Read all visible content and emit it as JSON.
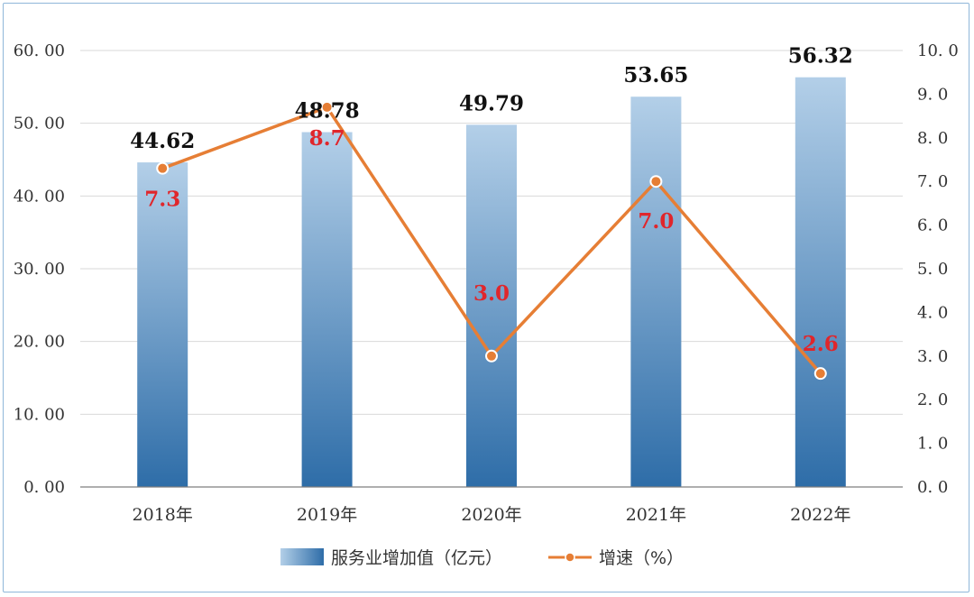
{
  "chart_data": {
    "type": "bar",
    "categories": [
      "2018年",
      "2019年",
      "2020年",
      "2021年",
      "2022年"
    ],
    "series": [
      {
        "name": "服务业增加值（亿元）",
        "type": "bar",
        "axis": "left",
        "values": [
          44.62,
          48.78,
          49.79,
          53.65,
          56.32
        ],
        "labels": [
          "44.62",
          "48.78",
          "49.79",
          "53.65",
          "56.32"
        ]
      },
      {
        "name": "增速（%）",
        "type": "line",
        "axis": "right",
        "values": [
          7.3,
          8.7,
          3.0,
          7.0,
          2.6
        ],
        "labels": [
          "7.3",
          "8.7",
          "3.0",
          "7.0",
          "2.6"
        ]
      }
    ],
    "y_left": {
      "ylim": [
        0,
        60
      ],
      "ticks": [
        0,
        10,
        20,
        30,
        40,
        50,
        60
      ],
      "tick_labels": [
        "0. 00",
        "10. 00",
        "20. 00",
        "30. 00",
        "40. 00",
        "50. 00",
        "60. 00"
      ]
    },
    "y_right": {
      "ylim": [
        0,
        10
      ],
      "ticks": [
        0,
        1,
        2,
        3,
        4,
        5,
        6,
        7,
        8,
        9,
        10
      ],
      "tick_labels": [
        "0. 0",
        "1. 0",
        "2. 0",
        "3. 0",
        "4. 0",
        "5. 0",
        "6. 0",
        "7. 0",
        "8. 0",
        "9. 0",
        "10. 0"
      ]
    },
    "grid": true,
    "legend_position": "bottom",
    "colors": {
      "bar_top": "#b3cfe8",
      "bar_bottom": "#2e6da8",
      "line": "#e67e35",
      "marker_stroke": "#ffffff",
      "rate_label": "#e0262b",
      "grid": "#d9d9d9",
      "axis": "#7f7f7f"
    }
  }
}
